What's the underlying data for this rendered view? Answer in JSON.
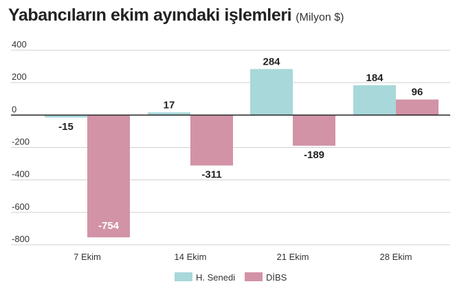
{
  "header": {
    "title": "Yabancıların ekim ayındaki işlemleri",
    "unit": "(Milyon $)"
  },
  "colors": {
    "series_1": "#a8d8da",
    "series_2": "#d293a6",
    "grid": "#cfcfcf",
    "zero_line": "#222222",
    "label_dark": "#222222",
    "label_light": "#ffffff"
  },
  "chart_data": {
    "type": "bar",
    "title": "Yabancıların ekim ayındaki işlemleri",
    "subtitle": "(Milyon $)",
    "categories": [
      "7 Ekim",
      "14 Ekim",
      "21 Ekim",
      "28 Ekim"
    ],
    "series": [
      {
        "name": "H. Senedi",
        "values": [
          -15,
          17,
          284,
          184
        ]
      },
      {
        "name": "DİBS",
        "values": [
          -754,
          -311,
          -189,
          96
        ]
      }
    ],
    "data_labels": [
      [
        "-15",
        "17",
        "284",
        "184"
      ],
      [
        "-754",
        "-311",
        "-189",
        "96"
      ]
    ],
    "y_ticks": [
      "400",
      "200",
      "0",
      "-200",
      "-400",
      "-600",
      "-800"
    ],
    "ylim": [
      -800,
      400
    ],
    "grid": true,
    "legend_position": "bottom"
  }
}
